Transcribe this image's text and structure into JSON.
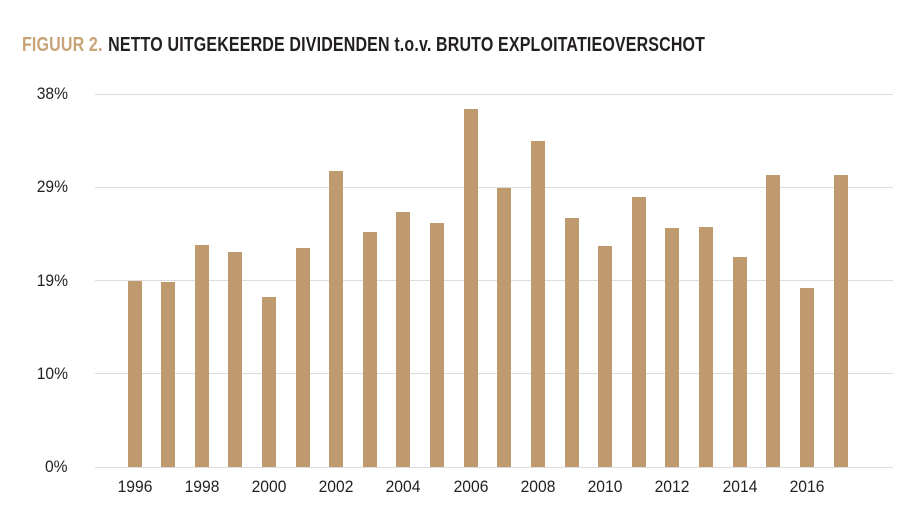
{
  "header": {
    "figure_label": "FIGUUR 2.",
    "title": "NETTO UITGEKEERDE DIVIDENDEN t.o.v. BRUTO EXPLOITATIEOVERSCHOT"
  },
  "colors": {
    "bar": "#BF9A6E",
    "accent": "#C8A377",
    "text": "#231F20",
    "gridline": "#DCDCDC",
    "background": "#FFFFFF"
  },
  "chart_data": {
    "type": "bar",
    "title": "FIGUUR 2. NETTO UITGEKEERDE DIVIDENDEN t.o.v. BRUTO EXPLOITATIEOVERSCHOT",
    "unit": "%",
    "categories": [
      "1996",
      "1997",
      "1998",
      "1999",
      "2000",
      "2001",
      "2002",
      "2003",
      "2004",
      "2005",
      "2006",
      "2007",
      "2008",
      "2009",
      "2010",
      "2011",
      "2012",
      "2013",
      "2014",
      "2015",
      "2016",
      "2017"
    ],
    "values": [
      19.0,
      18.8,
      22.6,
      21.9,
      17.3,
      22.3,
      30.2,
      23.9,
      26.0,
      24.9,
      36.5,
      28.4,
      33.2,
      25.4,
      22.5,
      27.5,
      24.3,
      24.5,
      21.4,
      29.8,
      18.2,
      29.8
    ],
    "y_axis": {
      "max": 38,
      "ticks": [
        {
          "label": "38%",
          "value": 38
        },
        {
          "label": "29%",
          "value": 28.5
        },
        {
          "label": "19%",
          "value": 19
        },
        {
          "label": "10%",
          "value": 9.5
        },
        {
          "label": "0%",
          "value": 0
        }
      ]
    },
    "x_axis": {
      "shown_labels": [
        "1996",
        "1998",
        "2000",
        "2002",
        "2004",
        "2006",
        "2008",
        "2010",
        "2012",
        "2014",
        "2016"
      ],
      "label_every": 2
    },
    "grid": "horizontal",
    "legend": "none"
  }
}
